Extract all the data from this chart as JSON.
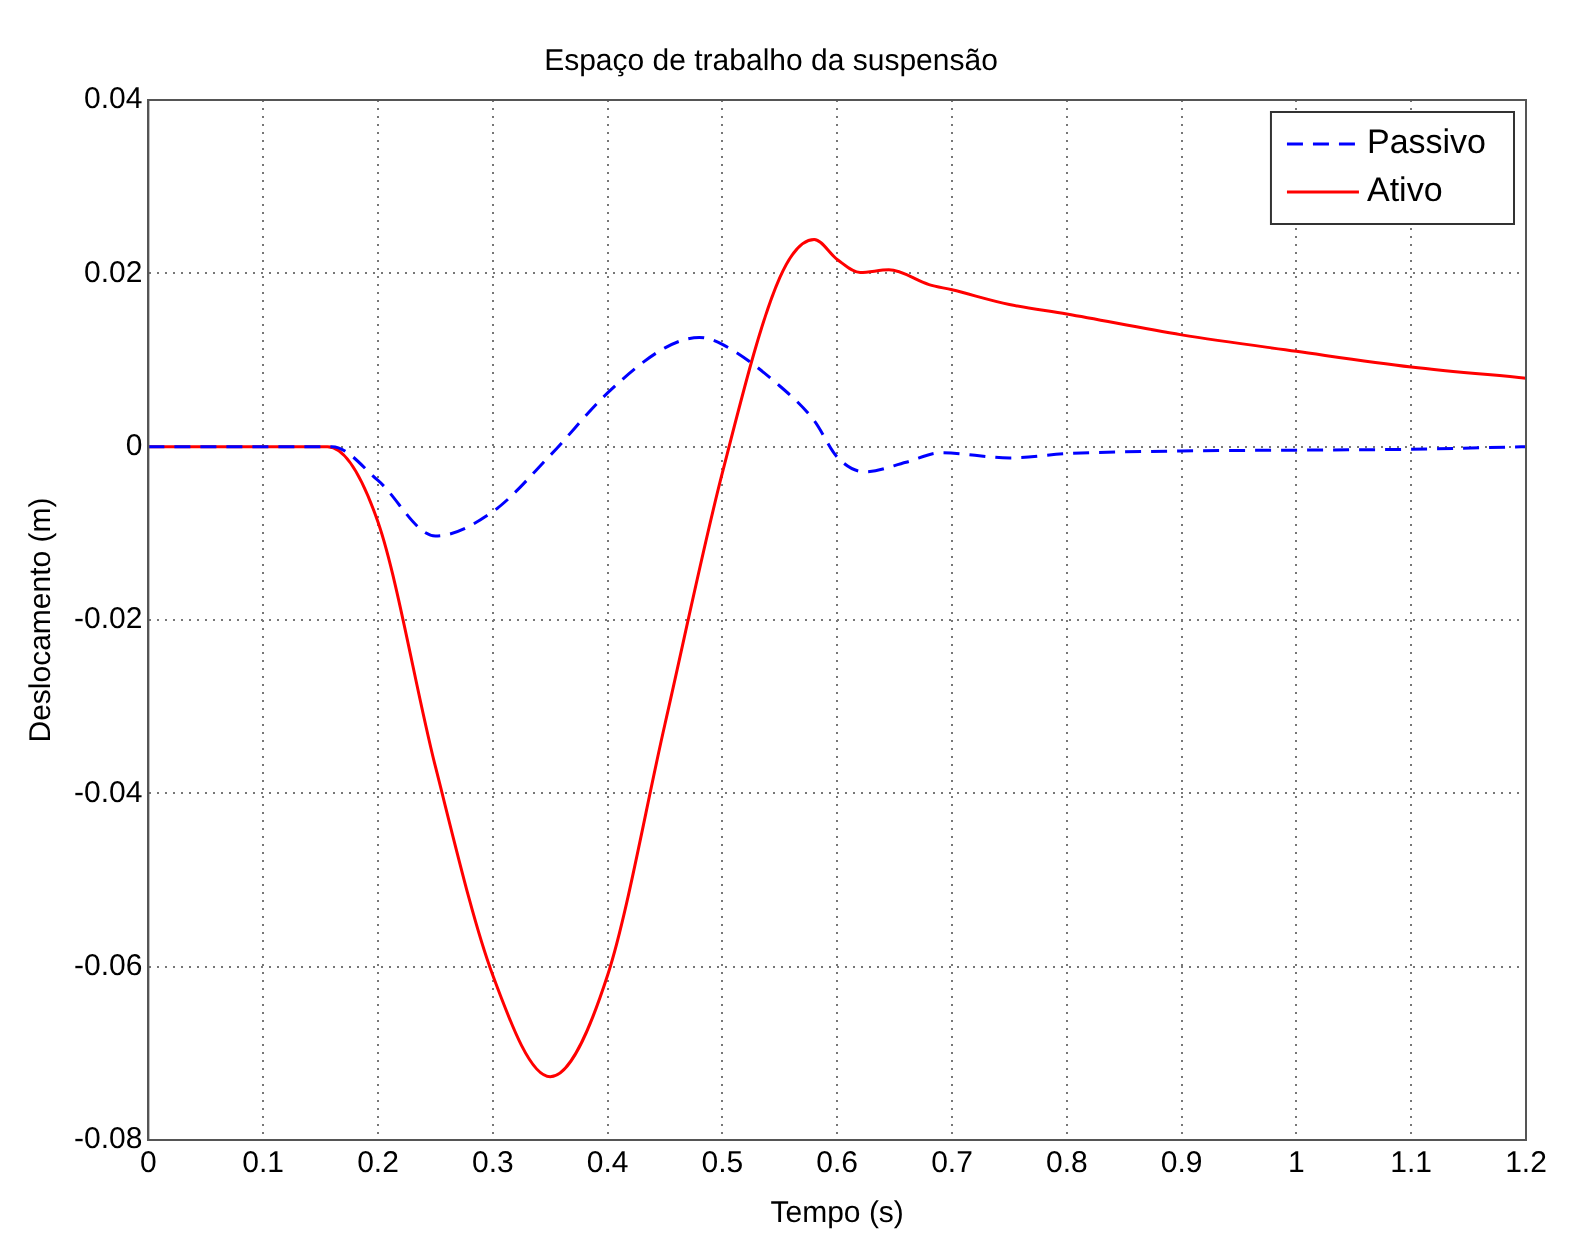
{
  "chart_data": {
    "type": "line",
    "title": "Espaço de trabalho da suspensão",
    "xlabel": "Tempo (s)",
    "ylabel": "Deslocamento (m)",
    "xlim": [
      0,
      1.2
    ],
    "xticks": [
      0,
      0.1,
      0.2,
      0.3,
      0.4,
      0.5,
      0.6,
      0.7,
      0.8,
      0.9,
      {
        "value": 1,
        "label": "1"
      },
      1.1,
      1.2
    ],
    "ylim": [
      -0.08,
      0.04
    ],
    "yticks": [
      -0.08,
      -0.06,
      -0.04,
      -0.02,
      0,
      0.02,
      0.04
    ],
    "grid": true,
    "legend": "top right",
    "marker": "none",
    "series": [
      {
        "name": "Passivo",
        "color": "#0000ff",
        "line_style": "dashed",
        "x": [
          0,
          0.1,
          0.16,
          0.2,
          0.25,
          0.3,
          0.35,
          0.4,
          0.45,
          0.48,
          0.5,
          0.55,
          0.58,
          0.6,
          0.624,
          0.66,
          0.69,
          0.75,
          0.8,
          0.9,
          1.0,
          1.1,
          1.2
        ],
        "values": [
          0,
          0,
          0,
          -0.0039,
          -0.0103,
          -0.0075,
          -0.001,
          0.0062,
          0.0114,
          0.0126,
          0.0118,
          0.007,
          0.003,
          -0.0012,
          -0.0029,
          -0.0018,
          -0.0007,
          -0.0013,
          -0.0008,
          -0.0005,
          -0.0004,
          -0.0003,
          0
        ]
      },
      {
        "name": "Ativo",
        "color": "#ff0000",
        "line_style": "solid",
        "x": [
          0,
          0.1,
          0.156,
          0.2,
          0.25,
          0.3,
          0.35,
          0.4,
          0.45,
          0.5,
          0.55,
          0.58,
          0.6,
          0.62,
          0.645,
          0.68,
          0.7,
          0.75,
          0.8,
          0.9,
          1.0,
          1.1,
          1.2
        ],
        "values": [
          0,
          0,
          0,
          -0.0087,
          -0.0369,
          -0.061,
          -0.0727,
          -0.061,
          -0.032,
          -0.003,
          0.0195,
          0.0239,
          0.0216,
          0.0201,
          0.0204,
          0.0187,
          0.0181,
          0.0164,
          0.0153,
          0.0129,
          0.011,
          0.0092,
          0.0079
        ]
      }
    ]
  }
}
